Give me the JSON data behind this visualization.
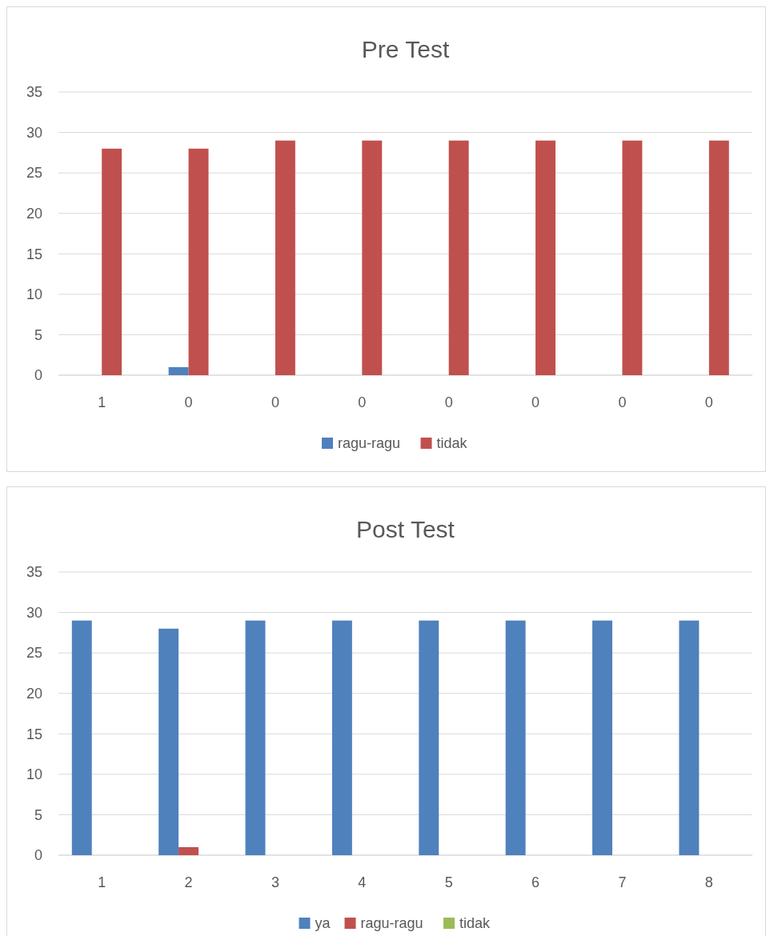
{
  "chart_data": [
    {
      "type": "bar",
      "title": "Pre Test",
      "categories": [
        "1",
        "0",
        "0",
        "0",
        "0",
        "0",
        "0",
        "0"
      ],
      "series": [
        {
          "name": "ragu-ragu",
          "color": "#4f81bd",
          "values": [
            0,
            1,
            0,
            0,
            0,
            0,
            0,
            0
          ]
        },
        {
          "name": "tidak",
          "color": "#c0504d",
          "values": [
            28,
            28,
            29,
            29,
            29,
            29,
            29,
            29
          ]
        }
      ],
      "ylim": [
        0,
        35
      ],
      "yticks": [
        0,
        5,
        10,
        15,
        20,
        25,
        30,
        35
      ],
      "grid": "y",
      "legend": "bottom"
    },
    {
      "type": "bar",
      "title": "Post Test",
      "categories": [
        "1",
        "2",
        "3",
        "4",
        "5",
        "6",
        "7",
        "8"
      ],
      "series": [
        {
          "name": "ya",
          "color": "#4f81bd",
          "values": [
            29,
            28,
            29,
            29,
            29,
            29,
            29,
            29
          ]
        },
        {
          "name": "ragu-ragu",
          "color": "#c0504d",
          "values": [
            0,
            1,
            0,
            0,
            0,
            0,
            0,
            0
          ]
        },
        {
          "name": "tidak",
          "color": "#9bbb59",
          "values": [
            0,
            0,
            0,
            0,
            0,
            0,
            0,
            0
          ]
        }
      ],
      "ylim": [
        0,
        35
      ],
      "yticks": [
        0,
        5,
        10,
        15,
        20,
        25,
        30,
        35
      ],
      "grid": "y",
      "legend": "bottom"
    }
  ]
}
